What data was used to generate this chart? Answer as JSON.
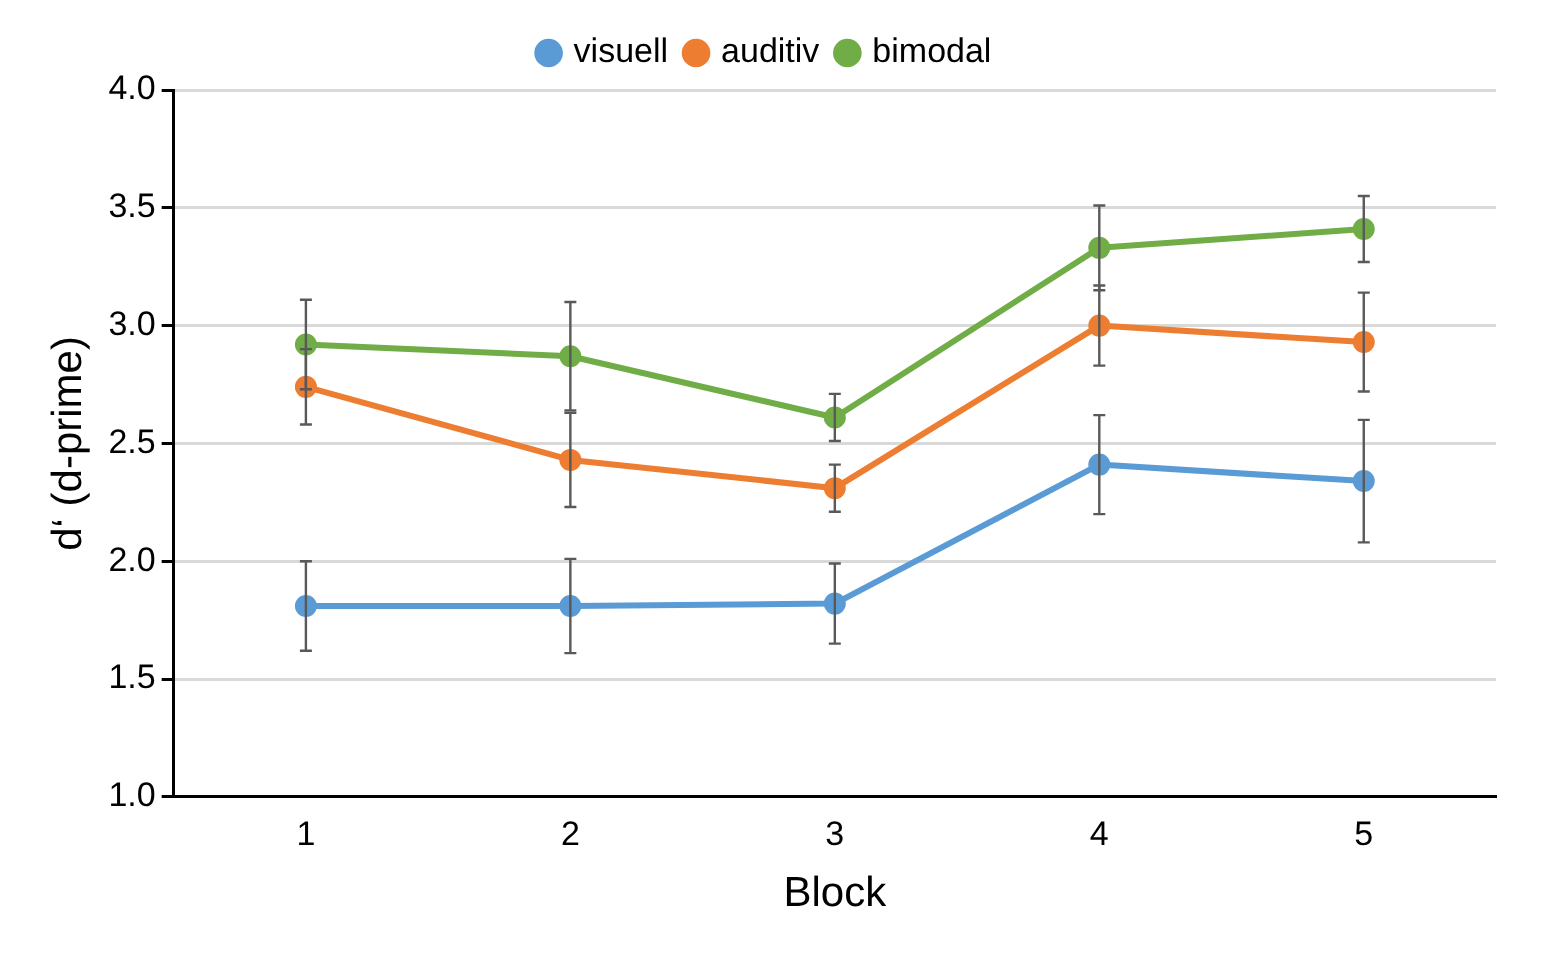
{
  "chart_data": {
    "type": "line",
    "xlabel": "Block",
    "ylabel": "d‘ (d-prime)",
    "categories": [
      "1",
      "2",
      "3",
      "4",
      "5"
    ],
    "ylim": [
      1.0,
      4.0
    ],
    "yticks": [
      {
        "value": 1,
        "label": "1.0"
      },
      1.5,
      {
        "value": 2,
        "label": "2.0"
      },
      2.5,
      {
        "value": 3,
        "label": "3.0"
      },
      3.5,
      {
        "value": 4,
        "label": "4.0"
      }
    ],
    "grid": "y",
    "legend": "top",
    "marker": "circle",
    "line_style": "solid",
    "series": [
      {
        "name": "visuell",
        "color": "#5b9bd5",
        "values": [
          1.81,
          1.81,
          1.82,
          2.41,
          2.34
        ],
        "errors": [
          0.19,
          0.2,
          0.17,
          0.21,
          0.26
        ]
      },
      {
        "name": "auditiv",
        "color": "#ed7d31",
        "values": [
          2.74,
          2.43,
          2.31,
          3.0,
          2.93
        ],
        "errors": [
          0.16,
          0.2,
          0.1,
          0.17,
          0.21
        ]
      },
      {
        "name": "bimodal",
        "color": "#70ad47",
        "values": [
          2.92,
          2.87,
          2.61,
          3.33,
          3.41
        ],
        "errors": [
          0.19,
          0.23,
          0.1,
          0.18,
          0.14
        ]
      }
    ]
  }
}
